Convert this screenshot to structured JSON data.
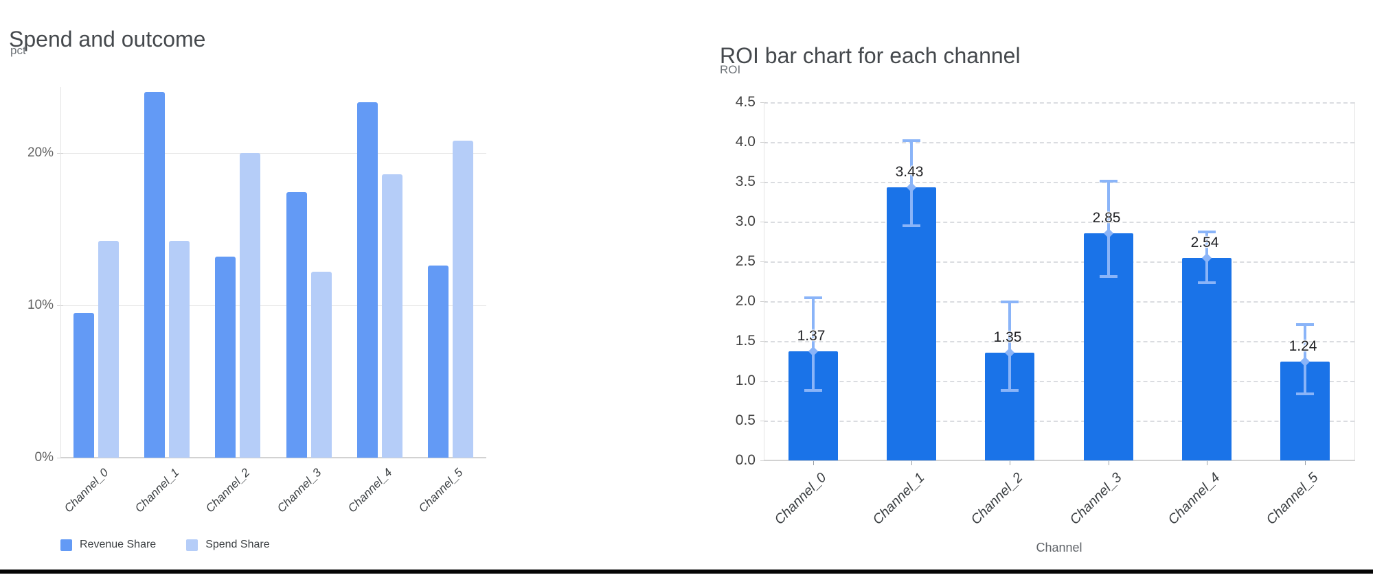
{
  "window": {
    "background": "#ffffff",
    "bottom_border_color": "#050505"
  },
  "chart_data": [
    {
      "type": "bar",
      "title": "Spend and outcome",
      "ylabel": "pct",
      "xlabel": "",
      "categories": [
        "Channel_0",
        "Channel_1",
        "Channel_2",
        "Channel_3",
        "Channel_4",
        "Channel_5"
      ],
      "series": [
        {
          "name": "Revenue Share",
          "color": "#639af5",
          "values": [
            9.5,
            24.0,
            13.2,
            17.4,
            23.3,
            12.6
          ]
        },
        {
          "name": "Spend Share",
          "color": "#b5cdf8",
          "values": [
            14.2,
            14.2,
            20.0,
            12.2,
            18.6,
            20.8
          ]
        }
      ],
      "value_format": "percent",
      "ylim": [
        0,
        24.3
      ],
      "yticks": [
        {
          "value": 0,
          "label": "0%"
        },
        {
          "value": 10,
          "label": "10%"
        },
        {
          "value": 20,
          "label": "20%"
        }
      ],
      "grid": "solid",
      "legend_position": "bottom"
    },
    {
      "type": "bar",
      "title": "ROI bar chart for each channel",
      "ylabel": "ROI",
      "xlabel": "Channel",
      "categories": [
        "Channel_0",
        "Channel_1",
        "Channel_2",
        "Channel_3",
        "Channel_4",
        "Channel_5"
      ],
      "series": [
        {
          "name": "ROI",
          "color": "#1a73e8",
          "values": [
            1.37,
            3.43,
            1.35,
            2.85,
            2.54,
            1.24
          ]
        }
      ],
      "bar_labels": [
        "1.37",
        "3.43",
        "1.35",
        "2.85",
        "2.54",
        "1.24"
      ],
      "error_bars": {
        "color": "#8ab4f8",
        "low": [
          0.88,
          2.95,
          0.88,
          2.31,
          2.23,
          0.84
        ],
        "high": [
          2.04,
          4.02,
          1.99,
          3.51,
          2.87,
          1.71
        ]
      },
      "ylim": [
        0,
        4.5
      ],
      "yticks": [
        {
          "value": 0.0,
          "label": "0.0"
        },
        {
          "value": 0.5,
          "label": "0.5"
        },
        {
          "value": 1.0,
          "label": "1.0"
        },
        {
          "value": 1.5,
          "label": "1.5"
        },
        {
          "value": 2.0,
          "label": "2.0"
        },
        {
          "value": 2.5,
          "label": "2.5"
        },
        {
          "value": 3.0,
          "label": "3.0"
        },
        {
          "value": 3.5,
          "label": "3.5"
        },
        {
          "value": 4.0,
          "label": "4.0"
        },
        {
          "value": 4.5,
          "label": "4.5"
        }
      ],
      "grid": "dashed",
      "legend_position": "none"
    }
  ]
}
